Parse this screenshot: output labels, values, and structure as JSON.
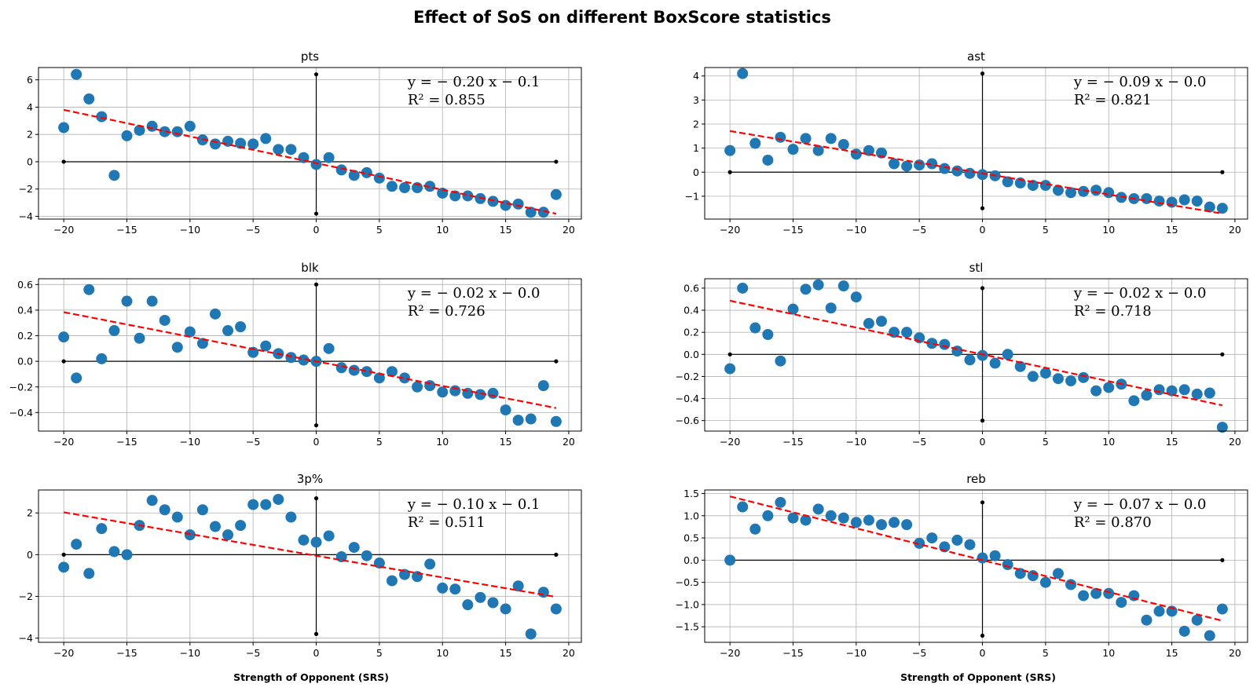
{
  "figure": {
    "title": "Effect of SoS on different BoxScore statistics",
    "xlabel": "Strength of Opponent (SRS)"
  },
  "chart_data": [
    {
      "type": "scatter",
      "title": "pts",
      "equation": "y = − 0.20 x − 0.1",
      "r2": "R² = 0.855",
      "xlim": [
        -22,
        21
      ],
      "ylim": [
        -4.2,
        6.9
      ],
      "xticks": [
        -20,
        -15,
        -10,
        -5,
        0,
        5,
        10,
        15,
        20
      ],
      "yticks": [
        -4,
        -2,
        0,
        2,
        4,
        6
      ],
      "x": [
        -20,
        -19,
        -18,
        -17,
        -16,
        -15,
        -14,
        -13,
        -12,
        -11,
        -10,
        -9,
        -8,
        -7,
        -6,
        -5,
        -4,
        -3,
        -2,
        -1,
        0,
        1,
        2,
        3,
        4,
        5,
        6,
        7,
        8,
        9,
        10,
        11,
        12,
        13,
        14,
        15,
        16,
        17,
        18,
        19
      ],
      "y": [
        2.5,
        6.4,
        4.6,
        3.3,
        -1.0,
        1.9,
        2.3,
        2.6,
        2.2,
        2.2,
        2.6,
        1.6,
        1.3,
        1.5,
        1.35,
        1.3,
        1.7,
        0.9,
        0.9,
        0.3,
        -0.2,
        0.3,
        -0.6,
        -1.0,
        -0.8,
        -1.2,
        -1.8,
        -1.9,
        -1.9,
        -1.8,
        -2.3,
        -2.5,
        -2.5,
        -2.7,
        -2.9,
        -3.2,
        -3.1,
        -3.7,
        -3.7,
        -2.4
      ],
      "fit": {
        "slope": -0.195,
        "intercept": -0.1,
        "x_range": [
          -20,
          19
        ]
      },
      "hline": {
        "y": 0,
        "x_range": [
          -20,
          19
        ]
      },
      "vline": {
        "x": 0,
        "y_range": [
          -3.8,
          6.4
        ]
      }
    },
    {
      "type": "scatter",
      "title": "ast",
      "equation": "y = − 0.09 x − 0.0",
      "r2": "R² = 0.821",
      "xlim": [
        -22,
        21
      ],
      "ylim": [
        -1.95,
        4.35
      ],
      "xticks": [
        -20,
        -15,
        -10,
        -5,
        0,
        5,
        10,
        15,
        20
      ],
      "yticks": [
        -1,
        0,
        1,
        2,
        3,
        4
      ],
      "x": [
        -20,
        -19,
        -18,
        -17,
        -16,
        -15,
        -14,
        -13,
        -12,
        -11,
        -10,
        -9,
        -8,
        -7,
        -6,
        -5,
        -4,
        -3,
        -2,
        -1,
        0,
        1,
        2,
        3,
        4,
        5,
        6,
        7,
        8,
        9,
        10,
        11,
        12,
        13,
        14,
        15,
        16,
        17,
        18,
        19
      ],
      "y": [
        0.9,
        4.1,
        1.2,
        0.5,
        1.45,
        0.95,
        1.4,
        0.9,
        1.4,
        1.15,
        0.75,
        0.9,
        0.8,
        0.35,
        0.25,
        0.3,
        0.35,
        0.15,
        0.05,
        -0.05,
        -0.1,
        -0.15,
        -0.4,
        -0.45,
        -0.55,
        -0.55,
        -0.75,
        -0.85,
        -0.8,
        -0.75,
        -0.85,
        -1.05,
        -1.1,
        -1.1,
        -1.2,
        -1.25,
        -1.15,
        -1.2,
        -1.45,
        -1.5
      ],
      "fit": {
        "slope": -0.088,
        "intercept": -0.05,
        "x_range": [
          -20,
          19
        ]
      },
      "hline": {
        "y": 0,
        "x_range": [
          -20,
          19
        ]
      },
      "vline": {
        "x": 0,
        "y_range": [
          -1.5,
          4.1
        ]
      }
    },
    {
      "type": "scatter",
      "title": "blk",
      "equation": "y = − 0.02 x − 0.0",
      "r2": "R² = 0.726",
      "xlim": [
        -22,
        21
      ],
      "ylim": [
        -0.545,
        0.645
      ],
      "xticks": [
        -20,
        -15,
        -10,
        -5,
        0,
        5,
        10,
        15,
        20
      ],
      "yticks": [
        -0.4,
        -0.2,
        0.0,
        0.2,
        0.4,
        0.6
      ],
      "x": [
        -20,
        -19,
        -18,
        -17,
        -16,
        -15,
        -14,
        -13,
        -12,
        -11,
        -10,
        -9,
        -8,
        -7,
        -6,
        -5,
        -4,
        -3,
        -2,
        -1,
        0,
        1,
        2,
        3,
        4,
        5,
        6,
        7,
        8,
        9,
        10,
        11,
        12,
        13,
        14,
        15,
        16,
        17,
        18,
        19
      ],
      "y": [
        0.19,
        -0.13,
        0.56,
        0.02,
        0.24,
        0.47,
        0.18,
        0.47,
        0.32,
        0.11,
        0.23,
        0.14,
        0.37,
        0.24,
        0.27,
        0.07,
        0.12,
        0.06,
        0.03,
        0.01,
        0.0,
        0.1,
        -0.05,
        -0.07,
        -0.08,
        -0.13,
        -0.08,
        -0.13,
        -0.2,
        -0.19,
        -0.24,
        -0.23,
        -0.25,
        -0.26,
        -0.25,
        -0.38,
        -0.46,
        -0.45,
        -0.19,
        -0.47
      ],
      "fit": {
        "slope": -0.0192,
        "intercept": -0.0,
        "x_range": [
          -20,
          19
        ]
      },
      "hline": {
        "y": 0,
        "x_range": [
          -20,
          19
        ]
      },
      "vline": {
        "x": 0,
        "y_range": [
          -0.5,
          0.6
        ]
      }
    },
    {
      "type": "scatter",
      "title": "stl",
      "equation": "y = − 0.02 x − 0.0",
      "r2": "R² = 0.718",
      "xlim": [
        -22,
        21
      ],
      "ylim": [
        -0.695,
        0.685
      ],
      "xticks": [
        -20,
        -15,
        -10,
        -5,
        0,
        5,
        10,
        15,
        20
      ],
      "yticks": [
        -0.6,
        -0.4,
        -0.2,
        0.0,
        0.2,
        0.4,
        0.6
      ],
      "x": [
        -20,
        -19,
        -18,
        -17,
        -16,
        -15,
        -14,
        -13,
        -12,
        -11,
        -10,
        -9,
        -8,
        -7,
        -6,
        -5,
        -4,
        -3,
        -2,
        -1,
        0,
        1,
        2,
        3,
        4,
        5,
        6,
        7,
        8,
        9,
        10,
        11,
        12,
        13,
        14,
        15,
        16,
        17,
        18,
        19
      ],
      "y": [
        -0.13,
        0.6,
        0.24,
        0.18,
        -0.06,
        0.41,
        0.59,
        0.63,
        0.42,
        0.62,
        0.52,
        0.28,
        0.3,
        0.2,
        0.2,
        0.15,
        0.1,
        0.09,
        0.03,
        -0.05,
        -0.01,
        -0.08,
        0.0,
        -0.11,
        -0.2,
        -0.17,
        -0.22,
        -0.24,
        -0.21,
        -0.33,
        -0.3,
        -0.27,
        -0.42,
        -0.37,
        -0.32,
        -0.33,
        -0.32,
        -0.36,
        -0.35,
        -0.66
      ],
      "fit": {
        "slope": -0.0243,
        "intercept": -0.0,
        "x_range": [
          -20,
          19
        ]
      },
      "hline": {
        "y": 0,
        "x_range": [
          -20,
          19
        ]
      },
      "vline": {
        "x": 0,
        "y_range": [
          -0.6,
          0.6
        ]
      }
    },
    {
      "type": "scatter",
      "title": "3p%",
      "equation": "y = − 0.10 x − 0.1",
      "r2": "R² = 0.511",
      "xlim": [
        -22,
        21
      ],
      "ylim": [
        -4.2,
        3.1
      ],
      "xticks": [
        -20,
        -15,
        -10,
        -5,
        0,
        5,
        10,
        15,
        20
      ],
      "yticks": [
        -4,
        -2,
        0,
        2
      ],
      "x": [
        -20,
        -19,
        -18,
        -17,
        -16,
        -15,
        -14,
        -13,
        -12,
        -11,
        -10,
        -9,
        -8,
        -7,
        -6,
        -5,
        -4,
        -3,
        -2,
        -1,
        0,
        1,
        2,
        3,
        4,
        5,
        6,
        7,
        8,
        9,
        10,
        11,
        12,
        13,
        14,
        15,
        16,
        17,
        18,
        19
      ],
      "y": [
        -0.6,
        0.5,
        -0.9,
        1.25,
        0.15,
        0.0,
        1.4,
        2.6,
        2.15,
        1.8,
        0.95,
        2.15,
        1.35,
        0.95,
        1.4,
        2.4,
        2.4,
        2.65,
        1.8,
        0.7,
        0.6,
        0.9,
        -0.1,
        0.35,
        -0.05,
        -0.4,
        -1.25,
        -0.95,
        -1.05,
        -0.45,
        -1.6,
        -1.65,
        -2.4,
        -2.05,
        -2.3,
        -2.6,
        -1.5,
        -3.8,
        -1.8,
        -2.6
      ],
      "fit": {
        "slope": -0.104,
        "intercept": -0.05,
        "x_range": [
          -20,
          19
        ]
      },
      "hline": {
        "y": 0,
        "x_range": [
          -20,
          19
        ]
      },
      "vline": {
        "x": 0,
        "y_range": [
          -3.8,
          2.7
        ]
      }
    },
    {
      "type": "scatter",
      "title": "reb",
      "equation": "y = − 0.07 x − 0.0",
      "r2": "R² = 0.870",
      "xlim": [
        -22,
        21
      ],
      "ylim": [
        -1.85,
        1.58
      ],
      "xticks": [
        -20,
        -15,
        -10,
        -5,
        0,
        5,
        10,
        15,
        20
      ],
      "yticks": [
        -1.5,
        -1.0,
        -0.5,
        0.0,
        0.5,
        1.0,
        1.5
      ],
      "x": [
        -20,
        -19,
        -18,
        -17,
        -16,
        -15,
        -14,
        -13,
        -12,
        -11,
        -10,
        -9,
        -8,
        -7,
        -6,
        -5,
        -4,
        -3,
        -2,
        -1,
        0,
        1,
        2,
        3,
        4,
        5,
        6,
        7,
        8,
        9,
        10,
        11,
        12,
        13,
        14,
        15,
        16,
        17,
        18,
        19
      ],
      "y": [
        0.0,
        1.2,
        0.7,
        1.0,
        1.3,
        0.95,
        0.9,
        1.15,
        1.0,
        0.95,
        0.85,
        0.9,
        0.8,
        0.85,
        0.8,
        0.38,
        0.5,
        0.3,
        0.45,
        0.35,
        0.05,
        0.1,
        -0.1,
        -0.3,
        -0.35,
        -0.5,
        -0.3,
        -0.55,
        -0.8,
        -0.75,
        -0.75,
        -0.95,
        -0.8,
        -1.35,
        -1.15,
        -1.15,
        -1.6,
        -1.35,
        -1.7,
        -1.1
      ],
      "fit": {
        "slope": -0.0718,
        "intercept": -0.0,
        "x_range": [
          -20,
          19
        ]
      },
      "hline": {
        "y": 0,
        "x_range": [
          -20,
          19
        ]
      },
      "vline": {
        "x": 0,
        "y_range": [
          -1.7,
          1.3
        ]
      }
    }
  ]
}
